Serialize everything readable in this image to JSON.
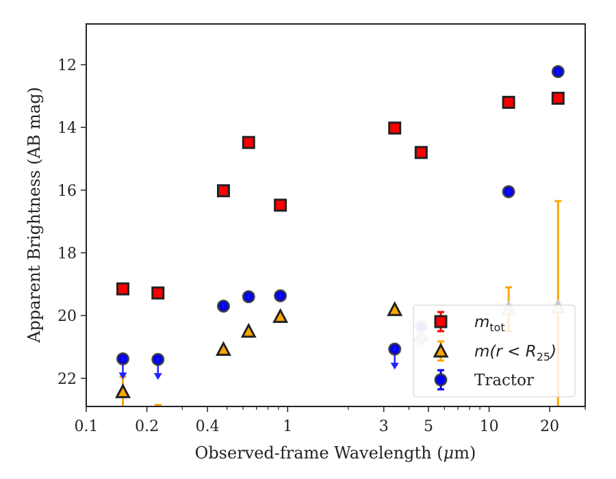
{
  "chart_data": {
    "type": "scatter",
    "title": "",
    "xlabel_prefix": "Observed-frame Wavelength (",
    "xlabel_mu": "μ",
    "xlabel_suffix": "m)",
    "ylabel": "Apparent Brightness (AB mag)",
    "x_scale": "log",
    "xlim": [
      0.1,
      30
    ],
    "ylim": [
      22.9,
      10.7
    ],
    "y_inverted": true,
    "x_ticks": [
      {
        "value": 0.1,
        "label": "0.1"
      },
      {
        "value": 0.2,
        "label": "0.2"
      },
      {
        "value": 0.4,
        "label": "0.4"
      },
      {
        "value": 1,
        "label": "1"
      },
      {
        "value": 3,
        "label": "3"
      },
      {
        "value": 5,
        "label": "5"
      },
      {
        "value": 10,
        "label": "10"
      },
      {
        "value": 20,
        "label": "20"
      }
    ],
    "x_minor_ticks": [
      0.3,
      0.5,
      0.6,
      0.7,
      0.8,
      0.9,
      2,
      4,
      6,
      7,
      8,
      9,
      30
    ],
    "y_ticks": [
      {
        "value": 12,
        "label": "12"
      },
      {
        "value": 14,
        "label": "14"
      },
      {
        "value": 16,
        "label": "16"
      },
      {
        "value": 18,
        "label": "18"
      },
      {
        "value": 20,
        "label": "20"
      },
      {
        "value": 22,
        "label": "22"
      }
    ],
    "grid": false,
    "legend_position": "lower-right",
    "series": [
      {
        "key": "mtot",
        "legend_label": "m",
        "legend_sub": "tot",
        "marker": "square",
        "fill": "#ff0000",
        "edge": "#222222",
        "errorbar_color": "#ff0000",
        "points": [
          {
            "x": 0.152,
            "y": 19.15
          },
          {
            "x": 0.227,
            "y": 19.28
          },
          {
            "x": 0.48,
            "y": 16.02
          },
          {
            "x": 0.64,
            "y": 14.48
          },
          {
            "x": 0.92,
            "y": 16.48
          },
          {
            "x": 3.4,
            "y": 14.02
          },
          {
            "x": 4.6,
            "y": 14.8
          },
          {
            "x": 12.5,
            "y": 13.2
          },
          {
            "x": 22.0,
            "y": 13.07
          }
        ]
      },
      {
        "key": "mr25",
        "legend_label": "m(r < R",
        "legend_sub": "25",
        "legend_close": ")",
        "marker": "triangle",
        "fill": "#ffa500",
        "edge": "#222222",
        "errorbar_color": "#ffa500",
        "points": [
          {
            "x": 0.152,
            "y": 22.45,
            "err_low": 21.95,
            "err_high": 22.9
          },
          {
            "x": 0.227,
            "y": null,
            "err_low": 22.85,
            "err_high": 22.9
          },
          {
            "x": 0.48,
            "y": 21.1
          },
          {
            "x": 0.64,
            "y": 20.52
          },
          {
            "x": 0.92,
            "y": 20.05
          },
          {
            "x": 3.4,
            "y": 19.83
          },
          {
            "x": 4.6,
            "y": 20.65,
            "faded": true
          },
          {
            "x": 12.5,
            "y": 19.8,
            "faded": true,
            "err_low": 19.1,
            "err_high": 20.5
          },
          {
            "x": 22.0,
            "y": 19.75,
            "faded": true,
            "err_low": 16.35,
            "err_high": 22.9
          }
        ]
      },
      {
        "key": "tractor",
        "legend_label": "Tractor",
        "marker": "circle",
        "fill": "#0000ff",
        "edge": "#333333",
        "errorbar_color": "#0000ff",
        "arrow_color": "#2222ff",
        "points": [
          {
            "x": 0.152,
            "y": 21.38,
            "upper_limit": true
          },
          {
            "x": 0.227,
            "y": 21.4,
            "upper_limit": true
          },
          {
            "x": 0.48,
            "y": 19.7
          },
          {
            "x": 0.64,
            "y": 19.4
          },
          {
            "x": 0.92,
            "y": 19.37
          },
          {
            "x": 3.4,
            "y": 21.07,
            "upper_limit": true
          },
          {
            "x": 4.6,
            "y": 20.35,
            "upper_limit": true,
            "faded": true
          },
          {
            "x": 12.5,
            "y": 16.05
          },
          {
            "x": 22.0,
            "y": 12.22
          }
        ]
      }
    ]
  }
}
